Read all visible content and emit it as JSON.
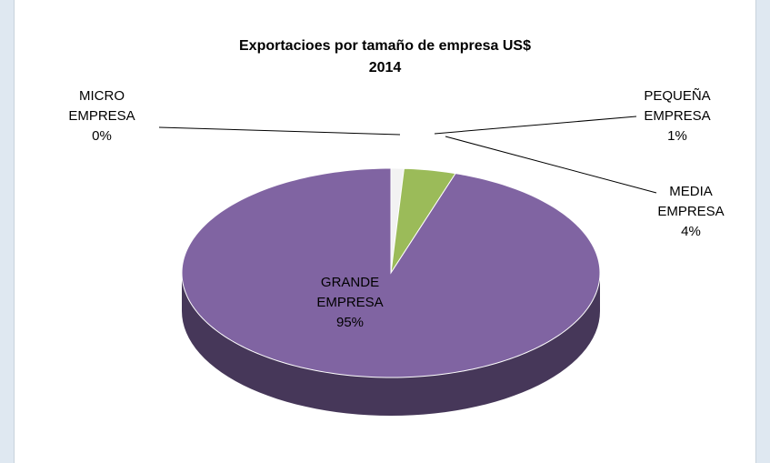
{
  "chart_data": {
    "type": "pie3d",
    "title": "Exportacioes por tamaño de empresa US$",
    "subtitle": "2014",
    "categories": [
      "MICRO EMPRESA",
      "PEQUEÑA EMPRESA",
      "MEDIA EMPRESA",
      "GRANDE EMPRESA"
    ],
    "values": [
      0,
      1,
      4,
      95
    ],
    "value_labels": [
      "0%",
      "1%",
      "4%",
      "95%"
    ],
    "colors": [
      "#c0504d",
      "#f2f2f2",
      "#9bbb59",
      "#8064a2"
    ]
  }
}
